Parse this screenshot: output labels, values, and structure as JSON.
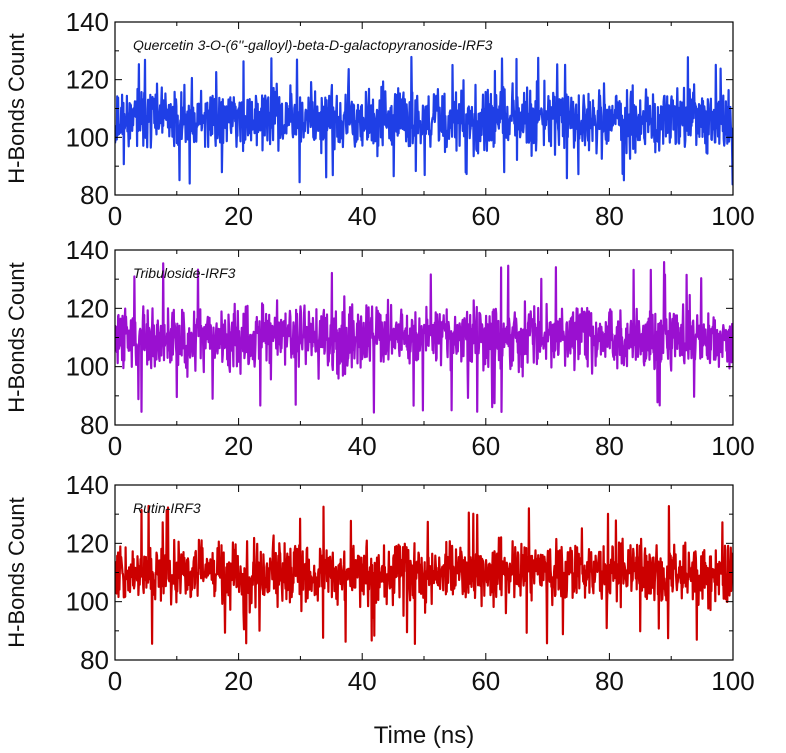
{
  "chart_data": [
    {
      "type": "line",
      "label": "Quercetin 3-O-(6''-galloyl)-beta-D-galactopyranoside-IRF3",
      "ylabel": "H-Bonds Count",
      "xlabel": "",
      "xlim": [
        0,
        100
      ],
      "ylim": [
        80,
        140
      ],
      "xticks": [
        0,
        20,
        40,
        60,
        80,
        100
      ],
      "yticks": [
        80,
        100,
        120,
        140
      ],
      "color": "#1f3fe6",
      "series": [
        {
          "mean": 106,
          "range": [
            83,
            128
          ]
        }
      ]
    },
    {
      "type": "line",
      "label": "Tribuloside-IRF3",
      "ylabel": "H-Bonds Count",
      "xlabel": "",
      "xlim": [
        0,
        100
      ],
      "ylim": [
        80,
        140
      ],
      "xticks": [
        0,
        20,
        40,
        60,
        80,
        100
      ],
      "yticks": [
        80,
        100,
        120,
        140
      ],
      "color": "#9a10d0",
      "series": [
        {
          "mean": 110,
          "range": [
            84,
            136
          ]
        }
      ]
    },
    {
      "type": "line",
      "label": "Rutin-IRF3",
      "ylabel": "H-Bonds Count",
      "xlabel": "Time (ns)",
      "xlim": [
        0,
        100
      ],
      "ylim": [
        80,
        140
      ],
      "xticks": [
        0,
        20,
        40,
        60,
        80,
        100
      ],
      "yticks": [
        80,
        100,
        120,
        140
      ],
      "color": "#cc0000",
      "series": [
        {
          "mean": 110,
          "range": [
            85,
            133
          ]
        }
      ]
    }
  ]
}
